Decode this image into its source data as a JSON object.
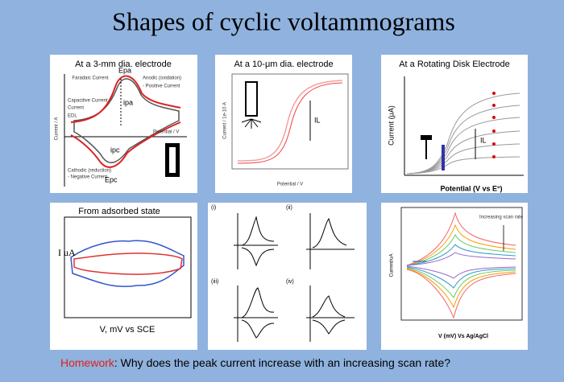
{
  "title": "Shapes of cyclic voltammograms",
  "panels": [
    {
      "caption": "At a 3-mm dia. electrode",
      "labels": [
        "Faradaic Current",
        "Epa",
        "Anodic (oxidation)",
        "- Positive Current",
        "Capacitive Current",
        "Current",
        "EDL",
        "ipa",
        "Potential / V",
        "ipc",
        "Cathodic (reduction)",
        "- Negative Current",
        "Epc",
        "Current / A"
      ]
    },
    {
      "caption": "At a 10-μm dia. electrode",
      "labels": [
        "IL",
        "Potential / V",
        "Current / 1e-10 A"
      ]
    },
    {
      "caption": "At a Rotating Disk Electrode",
      "labels": [
        "Current (μA)",
        "Potential (V vs E°)",
        "IL"
      ]
    },
    {
      "caption": "From adsorbed state",
      "labels": [
        "I uA",
        "V, mV vs SCE"
      ]
    },
    {
      "labels": [
        "(i)",
        "(ii)",
        "(iii)",
        "(iv)"
      ]
    },
    {
      "labels": [
        "Increasing scan rate",
        "V (mV) Vs Ag/AgCl",
        "Current/uA"
      ]
    }
  ],
  "homework": {
    "label": "Homework",
    "text": ": Why does the peak current increase with an increasing scan rate?"
  }
}
